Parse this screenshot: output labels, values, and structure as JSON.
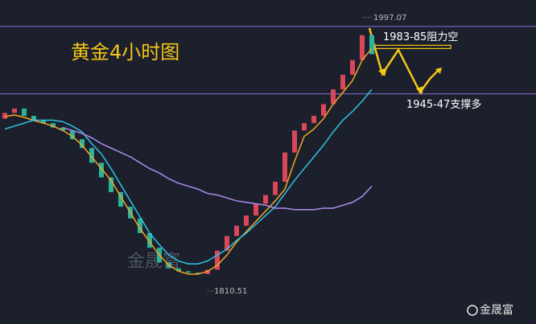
{
  "chart_data": {
    "type": "candlestick",
    "title": "黄金4小时图",
    "watermark": "金晟富",
    "brand": "金晟富",
    "ylim": [
      1788,
      2009
    ],
    "open": [
      1928,
      1932,
      1935,
      1930,
      1927,
      1925,
      1922,
      1920,
      1914,
      1908,
      1898,
      1888,
      1878,
      1868,
      1860,
      1850,
      1840,
      1830,
      1826,
      1824,
      1823,
      1822,
      1825,
      1838,
      1848,
      1855,
      1862,
      1870,
      1876,
      1885,
      1905,
      1920,
      1925,
      1930,
      1938,
      1948,
      1958,
      1968,
      1985
    ],
    "close": [
      1932,
      1935,
      1930,
      1927,
      1925,
      1922,
      1920,
      1914,
      1908,
      1898,
      1888,
      1878,
      1868,
      1860,
      1850,
      1840,
      1830,
      1826,
      1824,
      1823,
      1822,
      1825,
      1838,
      1848,
      1855,
      1862,
      1870,
      1876,
      1885,
      1905,
      1920,
      1925,
      1930,
      1938,
      1948,
      1958,
      1968,
      1985,
      1972
    ],
    "up_color": "#d9475a",
    "down_color": "#2bb39b",
    "series": [
      {
        "color": "#f5a623",
        "values": [
          1929.5,
          1930.6,
          1929,
          1926.8,
          1925,
          1923,
          1920,
          1916,
          1910,
          1902,
          1894,
          1886,
          1875,
          1864,
          1853,
          1844,
          1835,
          1828,
          1824,
          1822,
          1822,
          1824,
          1828,
          1835,
          1844,
          1851,
          1858,
          1865,
          1872,
          1880,
          1899,
          1916,
          1921,
          1928,
          1938,
          1946,
          1954,
          1968,
          1976
        ]
      },
      {
        "color": "#2fc3e6",
        "values": [
          1921,
          1923,
          1925,
          1927,
          1927,
          1927,
          1926,
          1923,
          1919,
          1911,
          1904,
          1894,
          1883,
          1872,
          1861,
          1850,
          1842,
          1835,
          1831,
          1829,
          1829,
          1831,
          1835,
          1839,
          1845,
          1850,
          1856,
          1862,
          1868,
          1877,
          1886,
          1894,
          1902,
          1910,
          1919,
          1927,
          1933,
          1940,
          1948
        ]
      },
      {
        "color": "#b08cf0",
        "values": [
          null,
          null,
          null,
          null,
          null,
          null,
          1922,
          1920,
          1918,
          1915,
          1911,
          1908,
          1905,
          1902,
          1898,
          1894,
          1891,
          1887,
          1884,
          1882,
          1880,
          1877,
          1876,
          1874,
          1872,
          1871,
          1870,
          1869,
          1867,
          1867,
          1866,
          1866,
          1866,
          1867,
          1867,
          1869,
          1871,
          1875,
          1882
        ]
      }
    ],
    "levels": [
      {
        "value": 1991,
        "color": "#8a6fd6"
      },
      {
        "value": 1945,
        "color": "#8a6fd6"
      }
    ],
    "resistance": {
      "label": "1983-85阻力空",
      "value": 1977
    },
    "support": {
      "label": "1945-47支撑多"
    },
    "high": {
      "label": "1997.07",
      "value": 1997.07
    },
    "low": {
      "label": "1810.51",
      "value": 1810.51
    }
  }
}
